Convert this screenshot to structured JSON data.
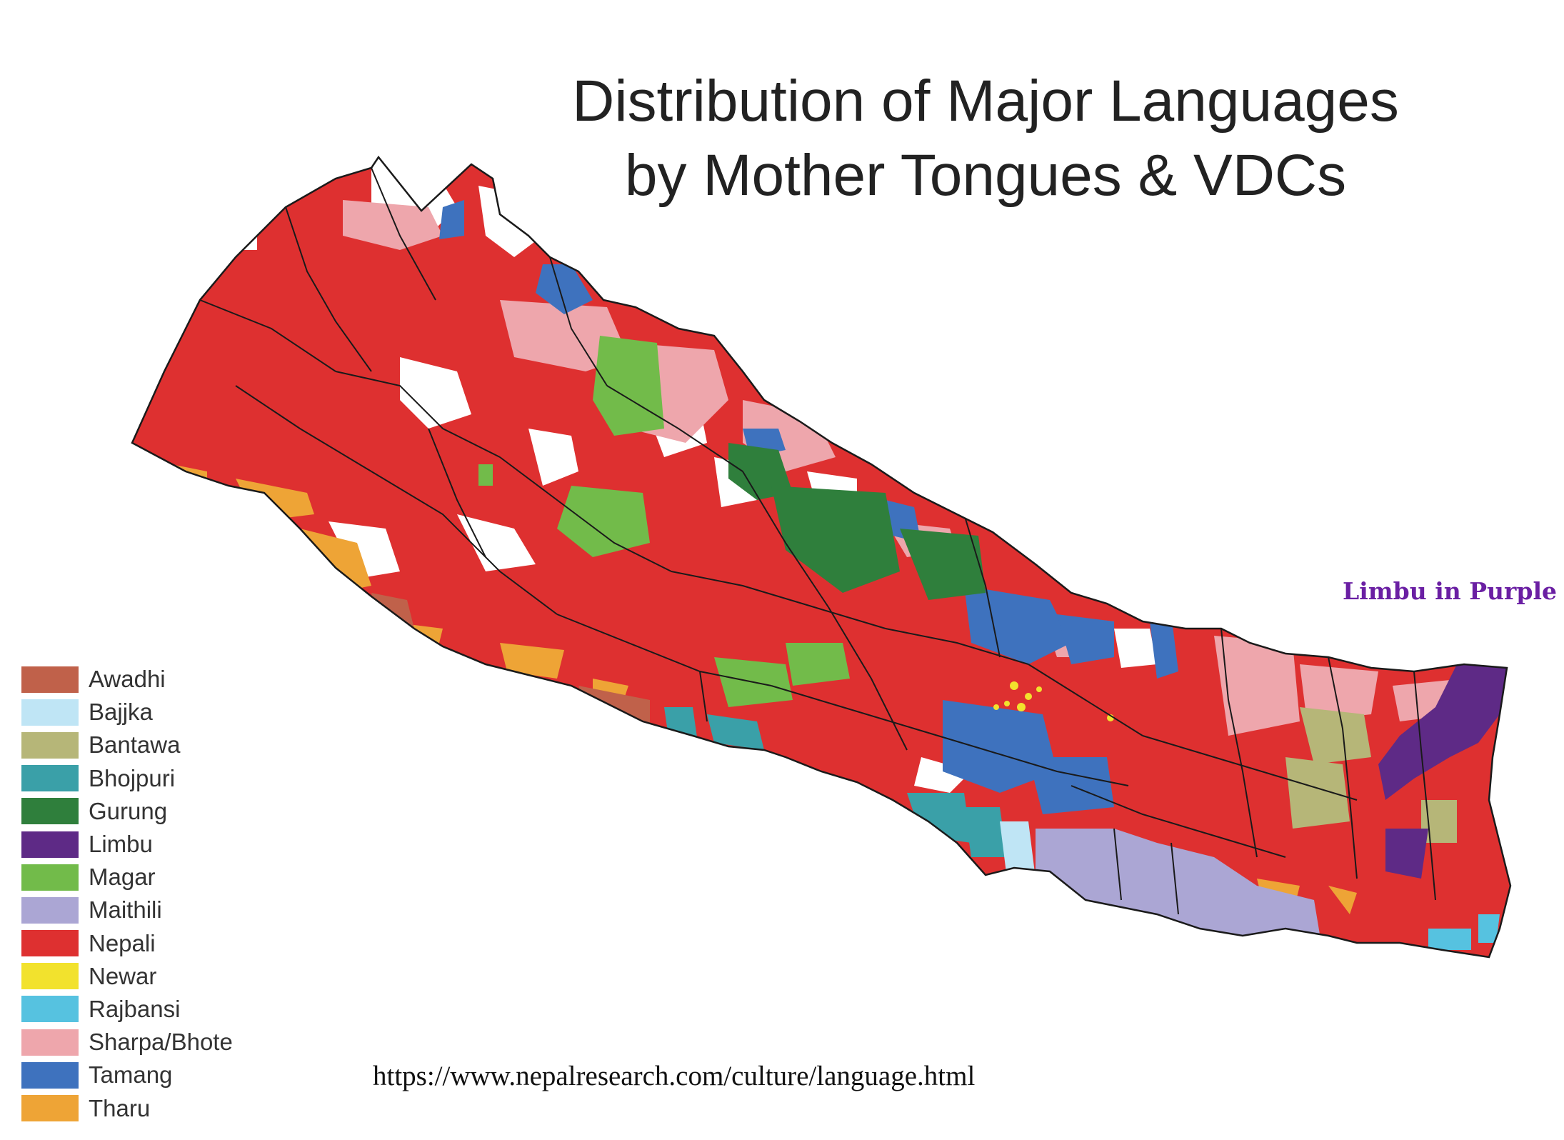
{
  "title": {
    "line1": "Distribution of Major Languages",
    "line2": "by Mother Tongues & VDCs"
  },
  "note": "Limbu in Purple",
  "source_url": "https://www.nepalresearch.com/culture/language.html",
  "legend": [
    {
      "key": "awadhi",
      "label": "Awadhi",
      "color": "#c0614a"
    },
    {
      "key": "bajjka",
      "label": "Bajjka",
      "color": "#bfe5f5"
    },
    {
      "key": "bantawa",
      "label": "Bantawa",
      "color": "#b6b678"
    },
    {
      "key": "bhojpuri",
      "label": "Bhojpuri",
      "color": "#3aa0a8"
    },
    {
      "key": "gurung",
      "label": "Gurung",
      "color": "#2f7f3c"
    },
    {
      "key": "limbu",
      "label": "Limbu",
      "color": "#5e2a86"
    },
    {
      "key": "magar",
      "label": "Magar",
      "color": "#72bb4a"
    },
    {
      "key": "maithili",
      "label": "Maithili",
      "color": "#aba6d4"
    },
    {
      "key": "nepali",
      "label": "Nepali",
      "color": "#de3030"
    },
    {
      "key": "newar",
      "label": "Newar",
      "color": "#f2e22d"
    },
    {
      "key": "rajbansi",
      "label": "Rajbansi",
      "color": "#56c2e0"
    },
    {
      "key": "sharpa_bhote",
      "label": "Sharpa/Bhote",
      "color": "#eea6ac"
    },
    {
      "key": "tamang",
      "label": "Tamang",
      "color": "#3e72be"
    },
    {
      "key": "tharu",
      "label": "Tharu",
      "color": "#eea436"
    }
  ]
}
